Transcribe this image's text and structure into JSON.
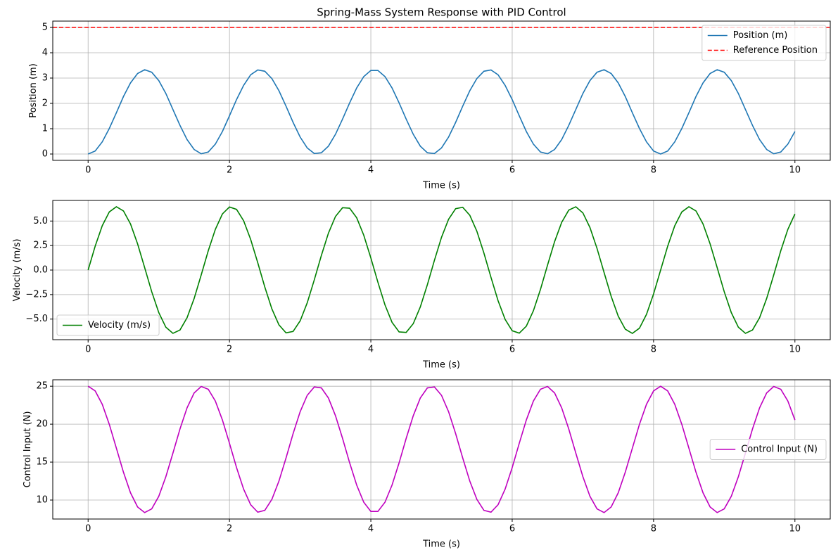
{
  "chart_data": [
    {
      "type": "line",
      "title": "Spring-Mass System Response with PID Control",
      "xlabel": "Time (s)",
      "ylabel": "Position (m)",
      "xlim": [
        -0.5,
        10.5
      ],
      "xticks": [
        0,
        2,
        4,
        6,
        8,
        10
      ],
      "ylim": [
        -0.25,
        5.25
      ],
      "yticks": [
        0,
        1,
        2,
        3,
        4,
        5
      ],
      "grid": true,
      "legend": "upper right",
      "x": [
        0,
        0.1,
        0.2,
        0.3,
        0.4,
        0.5,
        0.6,
        0.7,
        0.8,
        0.9,
        1,
        1.1,
        1.2,
        1.3,
        1.4,
        1.5,
        1.6,
        1.7,
        1.8,
        1.9,
        2,
        2.1,
        2.2,
        2.3,
        2.4,
        2.5,
        2.6,
        2.7,
        2.8,
        2.9,
        3,
        3.1,
        3.2,
        3.3,
        3.4,
        3.5,
        3.6,
        3.7,
        3.8,
        3.9,
        4,
        4.1,
        4.2,
        4.3,
        4.4,
        4.5,
        4.6,
        4.7,
        4.8,
        4.9,
        5,
        5.1,
        5.2,
        5.3,
        5.4,
        5.5,
        5.6,
        5.7,
        5.8,
        5.9,
        6,
        6.1,
        6.2,
        6.3,
        6.4,
        6.5,
        6.6,
        6.7,
        6.8,
        6.9,
        7,
        7.1,
        7.2,
        7.3,
        7.4,
        7.5,
        7.6,
        7.7,
        7.8,
        7.9,
        8,
        8.1,
        8.2,
        8.3,
        8.4,
        8.5,
        8.6,
        8.7,
        8.8,
        8.9,
        9,
        9.1,
        9.2,
        9.3,
        9.4,
        9.5,
        9.6,
        9.7,
        9.8,
        9.9,
        10
      ],
      "series": [
        {
          "name": "Position (m)",
          "color": "#1f77b4",
          "values": [
            0,
            0.12,
            0.48,
            1.01,
            1.63,
            2.27,
            2.81,
            3.18,
            3.33,
            3.23,
            2.9,
            2.39,
            1.76,
            1.13,
            0.57,
            0.18,
            0.01,
            0.08,
            0.39,
            0.89,
            1.51,
            2.15,
            2.71,
            3.13,
            3.32,
            3.27,
            2.98,
            2.5,
            1.89,
            1.25,
            0.67,
            0.24,
            0.02,
            0.05,
            0.31,
            0.78,
            1.38,
            2.02,
            2.61,
            3.06,
            3.3,
            3.3,
            3.06,
            2.61,
            2.02,
            1.38,
            0.78,
            0.31,
            0.05,
            0.02,
            0.24,
            0.67,
            1.25,
            1.89,
            2.5,
            2.98,
            3.27,
            3.32,
            3.13,
            2.71,
            2.15,
            1.51,
            0.89,
            0.39,
            0.08,
            0.01,
            0.18,
            0.57,
            1.13,
            1.76,
            2.39,
            2.9,
            3.23,
            3.33,
            3.18,
            2.81,
            2.27,
            1.63,
            1.01,
            0.48,
            0.12,
            0,
            0.12,
            0.48,
            1.01,
            1.63,
            2.27,
            2.81,
            3.18,
            3.33,
            3.23,
            2.9,
            2.39,
            1.76,
            1.13,
            0.57,
            0.18,
            0.01,
            0.08,
            0.39,
            0.89
          ]
        }
      ],
      "hlines": [
        {
          "name": "Reference Position",
          "color": "#ff0000",
          "linestyle": "dashed",
          "y": 5
        }
      ]
    },
    {
      "type": "line",
      "xlabel": "Time (s)",
      "ylabel": "Velocity (m/s)",
      "xlim": [
        -0.5,
        10.5
      ],
      "xticks": [
        0,
        2,
        4,
        6,
        8,
        10
      ],
      "ylim": [
        -7.1,
        7.1
      ],
      "yticks": [
        {
          "value": -5,
          "label": "−5.0"
        },
        {
          "value": -2.5,
          "label": "−2.5"
        },
        {
          "value": 0,
          "label": "0.0"
        },
        {
          "value": 2.5,
          "label": "2.5"
        },
        {
          "value": 5,
          "label": "5.0"
        }
      ],
      "grid": true,
      "legend": "lower left",
      "x": [
        0,
        0.1,
        0.2,
        0.3,
        0.4,
        0.5,
        0.6,
        0.7,
        0.8,
        0.9,
        1,
        1.1,
        1.2,
        1.3,
        1.4,
        1.5,
        1.6,
        1.7,
        1.8,
        1.9,
        2,
        2.1,
        2.2,
        2.3,
        2.4,
        2.5,
        2.6,
        2.7,
        2.8,
        2.9,
        3,
        3.1,
        3.2,
        3.3,
        3.4,
        3.5,
        3.6,
        3.7,
        3.8,
        3.9,
        4,
        4.1,
        4.2,
        4.3,
        4.4,
        4.5,
        4.6,
        4.7,
        4.8,
        4.9,
        5,
        5.1,
        5.2,
        5.3,
        5.4,
        5.5,
        5.6,
        5.7,
        5.8,
        5.9,
        6,
        6.1,
        6.2,
        6.3,
        6.4,
        6.5,
        6.6,
        6.7,
        6.8,
        6.9,
        7,
        7.1,
        7.2,
        7.3,
        7.4,
        7.5,
        7.6,
        7.7,
        7.8,
        7.9,
        8,
        8.1,
        8.2,
        8.3,
        8.4,
        8.5,
        8.6,
        8.7,
        8.8,
        8.9,
        9,
        9.1,
        9.2,
        9.3,
        9.4,
        9.5,
        9.6,
        9.7,
        9.8,
        9.9,
        10
      ],
      "series": [
        {
          "name": "Velocity (m/s)",
          "color": "#008000",
          "values": [
            0,
            2.44,
            4.52,
            5.93,
            6.46,
            6.03,
            4.7,
            2.67,
            0.25,
            -2.21,
            -4.34,
            -5.83,
            -6.45,
            -6.11,
            -4.86,
            -2.9,
            -0.5,
            1.97,
            4.15,
            5.72,
            6.43,
            6.19,
            5.03,
            3.12,
            0.75,
            -1.73,
            -3.96,
            -5.59,
            -6.4,
            -6.26,
            -5.18,
            -3.34,
            -1,
            1.49,
            3.76,
            5.47,
            6.36,
            6.31,
            5.33,
            3.55,
            1.24,
            -1.24,
            -3.55,
            -5.33,
            -6.31,
            -6.36,
            -5.47,
            -3.76,
            -1.49,
            1,
            3.34,
            5.18,
            6.26,
            6.4,
            5.59,
            3.96,
            1.73,
            -0.75,
            -3.12,
            -5.03,
            -6.19,
            -6.43,
            -5.72,
            -4.15,
            -1.97,
            0.5,
            2.9,
            4.86,
            6.11,
            6.45,
            5.83,
            4.34,
            2.21,
            -0.25,
            -2.67,
            -4.7,
            -6.03,
            -6.46,
            -5.93,
            -4.52,
            -2.44,
            0,
            2.44,
            4.52,
            5.93,
            6.46,
            6.03,
            4.7,
            2.67,
            0.25,
            -2.21,
            -4.34,
            -5.83,
            -6.45,
            -6.11,
            -4.86,
            -2.9,
            -0.5,
            1.97,
            4.15,
            5.72
          ]
        }
      ]
    },
    {
      "type": "line",
      "xlabel": "Time (s)",
      "ylabel": "Control Input (N)",
      "xlim": [
        -0.5,
        10.5
      ],
      "xticks": [
        0,
        2,
        4,
        6,
        8,
        10
      ],
      "ylim": [
        7.5,
        25.85
      ],
      "yticks": [
        10,
        15,
        20,
        25
      ],
      "grid": true,
      "legend": "center right",
      "x": [
        0,
        0.1,
        0.2,
        0.3,
        0.4,
        0.5,
        0.6,
        0.7,
        0.8,
        0.9,
        1,
        1.1,
        1.2,
        1.3,
        1.4,
        1.5,
        1.6,
        1.7,
        1.8,
        1.9,
        2,
        2.1,
        2.2,
        2.3,
        2.4,
        2.5,
        2.6,
        2.7,
        2.8,
        2.9,
        3,
        3.1,
        3.2,
        3.3,
        3.4,
        3.5,
        3.6,
        3.7,
        3.8,
        3.9,
        4,
        4.1,
        4.2,
        4.3,
        4.4,
        4.5,
        4.6,
        4.7,
        4.8,
        4.9,
        5,
        5.1,
        5.2,
        5.3,
        5.4,
        5.5,
        5.6,
        5.7,
        5.8,
        5.9,
        6,
        6.1,
        6.2,
        6.3,
        6.4,
        6.5,
        6.6,
        6.7,
        6.8,
        6.9,
        7,
        7.1,
        7.2,
        7.3,
        7.4,
        7.5,
        7.6,
        7.7,
        7.8,
        7.9,
        8,
        8.1,
        8.2,
        8.3,
        8.4,
        8.5,
        8.6,
        8.7,
        8.8,
        8.9,
        9,
        9.1,
        9.2,
        9.3,
        9.4,
        9.5,
        9.6,
        9.7,
        9.8,
        9.9,
        10
      ],
      "series": [
        {
          "name": "Control Input (N)",
          "color": "#bf00bf",
          "values": [
            25,
            24.38,
            22.62,
            19.97,
            16.83,
            13.67,
            10.95,
            9.09,
            8.35,
            8.84,
            10.5,
            13.08,
            16.19,
            19.37,
            22.15,
            24.11,
            24.97,
            24.6,
            23.05,
            20.55,
            17.48,
            14.28,
            11.44,
            9.38,
            8.4,
            8.64,
            10.09,
            12.5,
            15.54,
            18.75,
            21.64,
            23.8,
            24.9,
            24.78,
            23.45,
            21.11,
            18.12,
            14.91,
            11.97,
            9.71,
            8.5,
            8.5,
            9.71,
            11.97,
            14.91,
            18.12,
            21.11,
            23.45,
            24.78,
            24.9,
            23.8,
            21.64,
            18.75,
            15.54,
            12.5,
            10.09,
            8.64,
            8.4,
            9.38,
            11.44,
            14.28,
            17.48,
            20.55,
            23.05,
            24.6,
            24.97,
            24.11,
            22.15,
            19.37,
            16.19,
            13.08,
            10.5,
            8.84,
            8.35,
            9.09,
            10.95,
            13.67,
            16.83,
            19.97,
            22.62,
            24.38,
            25,
            24.38,
            22.62,
            19.97,
            16.83,
            13.67,
            10.95,
            9.09,
            8.35,
            8.84,
            10.5,
            13.08,
            16.19,
            19.37,
            22.15,
            24.11,
            24.97,
            24.6,
            23.05,
            20.55
          ]
        }
      ]
    }
  ]
}
